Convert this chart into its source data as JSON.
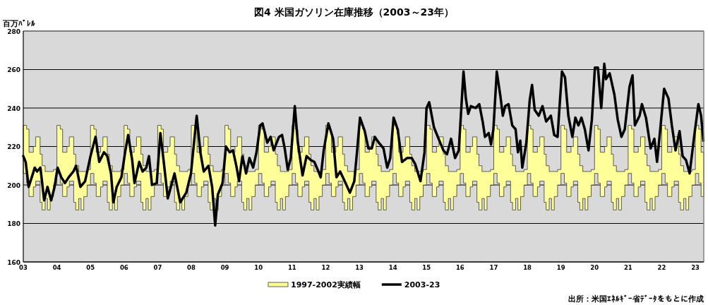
{
  "chart_data": {
    "type": "line",
    "title": "図4 米国ガソリン在庫推移（2003～23年）",
    "ylabel": "百万ﾊﾞﾚﾙ",
    "annotations": [
      "出所：米国ｴﾈﾙｷﾞｰ省ﾃﾞｰﾀをもとに作成"
    ],
    "xlim": [
      2003,
      2023.25
    ],
    "xticks": [
      {
        "value": 2003,
        "label": "03"
      },
      {
        "value": 2004,
        "label": "04"
      },
      {
        "value": 2005,
        "label": "05"
      },
      {
        "value": 2006,
        "label": "06"
      },
      {
        "value": 2007,
        "label": "07"
      },
      {
        "value": 2008,
        "label": "08"
      },
      {
        "value": 2009,
        "label": "09"
      },
      {
        "value": 2010,
        "label": "10"
      },
      {
        "value": 2011,
        "label": "11"
      },
      {
        "value": 2012,
        "label": "12"
      },
      {
        "value": 2013,
        "label": "13"
      },
      {
        "value": 2014,
        "label": "14"
      },
      {
        "value": 2015,
        "label": "15"
      },
      {
        "value": 2016,
        "label": "16"
      },
      {
        "value": 2017,
        "label": "17"
      },
      {
        "value": 2018,
        "label": "18"
      },
      {
        "value": 2019,
        "label": "19"
      },
      {
        "value": 2020,
        "label": "20"
      },
      {
        "value": 2021,
        "label": "21"
      },
      {
        "value": 2022,
        "label": "22"
      },
      {
        "value": 2023,
        "label": "23"
      }
    ],
    "ylim": [
      160,
      280
    ],
    "yticks": [
      160,
      180,
      200,
      220,
      240,
      260,
      280
    ],
    "grid": "y",
    "legend": "bottom",
    "series": [
      {
        "name": "1997-2002実績幅",
        "type": "area",
        "color": "#ffff99",
        "x": [
          2003,
          2003.1,
          2003.17,
          2003.3,
          2003.37,
          2003.5,
          2003.56,
          2003.65,
          2003.72,
          2003.8,
          2003.9,
          2004,
          2004.1,
          2004.17,
          2004.3,
          2004.37,
          2004.5,
          2004.56,
          2004.65,
          2004.72,
          2004.8,
          2004.9,
          2005,
          2005.1,
          2005.17,
          2005.3,
          2005.37,
          2005.5,
          2005.56,
          2005.65,
          2005.72,
          2005.8,
          2005.9,
          2006,
          2006.1,
          2006.17,
          2006.3,
          2006.37,
          2006.5,
          2006.56,
          2006.65,
          2006.72,
          2006.8,
          2006.9,
          2007,
          2007.1,
          2007.17,
          2007.3,
          2007.37,
          2007.5,
          2007.56,
          2007.65,
          2007.72,
          2007.8,
          2007.9,
          2008,
          2008.1,
          2008.17,
          2008.3,
          2008.37,
          2008.5,
          2008.56,
          2008.65,
          2008.72,
          2008.8,
          2008.9,
          2009,
          2009.1,
          2009.17,
          2009.3,
          2009.37,
          2009.5,
          2009.56,
          2009.65,
          2009.72,
          2009.8,
          2009.9,
          2010,
          2010.1,
          2010.17,
          2010.3,
          2010.37,
          2010.5,
          2010.56,
          2010.65,
          2010.72,
          2010.8,
          2010.9,
          2011,
          2011.1,
          2011.17,
          2011.3,
          2011.37,
          2011.5,
          2011.56,
          2011.65,
          2011.72,
          2011.8,
          2011.9,
          2012,
          2012.1,
          2012.17,
          2012.3,
          2012.37,
          2012.5,
          2012.56,
          2012.65,
          2012.72,
          2012.8,
          2012.9,
          2013,
          2013.1,
          2013.17,
          2013.3,
          2013.37,
          2013.5,
          2013.56,
          2013.65,
          2013.72,
          2013.8,
          2013.9,
          2014,
          2014.1,
          2014.17,
          2014.3,
          2014.37,
          2014.5,
          2014.56,
          2014.65,
          2014.72,
          2014.8,
          2014.9,
          2015,
          2015.1,
          2015.17,
          2015.3,
          2015.37,
          2015.5,
          2015.56,
          2015.65,
          2015.72,
          2015.8,
          2015.9,
          2016,
          2016.1,
          2016.17,
          2016.3,
          2016.37,
          2016.5,
          2016.56,
          2016.65,
          2016.72,
          2016.8,
          2016.9,
          2017,
          2017.1,
          2017.17,
          2017.3,
          2017.37,
          2017.5,
          2017.56,
          2017.65,
          2017.72,
          2017.8,
          2017.9,
          2018,
          2018.1,
          2018.17,
          2018.3,
          2018.37,
          2018.5,
          2018.56,
          2018.65,
          2018.72,
          2018.8,
          2018.9,
          2019,
          2019.1,
          2019.17,
          2019.3,
          2019.37,
          2019.5,
          2019.56,
          2019.65,
          2019.72,
          2019.8,
          2019.9,
          2020,
          2020.1,
          2020.17,
          2020.3,
          2020.37,
          2020.5,
          2020.56,
          2020.65,
          2020.72,
          2020.8,
          2020.9,
          2021,
          2021.1,
          2021.17,
          2021.3,
          2021.37,
          2021.5,
          2021.56,
          2021.65,
          2021.72,
          2021.8,
          2021.9,
          2022,
          2022.1,
          2022.17,
          2022.3,
          2022.37,
          2022.5,
          2022.56,
          2022.65,
          2022.72,
          2022.8,
          2022.9,
          2023,
          2023.1,
          2023.17
        ],
        "values": [
          null,
          null,
          null,
          null,
          null,
          null,
          null,
          null,
          null,
          null,
          null,
          null,
          null,
          null,
          null,
          null,
          null,
          null,
          null,
          null,
          null,
          null,
          null,
          null,
          null,
          null,
          null,
          null,
          null,
          null,
          null,
          null,
          null,
          null,
          null,
          null,
          null,
          null,
          null,
          null,
          null,
          null,
          null,
          null,
          null,
          null,
          null,
          null,
          null,
          null,
          null,
          null,
          null,
          null,
          null,
          null,
          null,
          null,
          null,
          null,
          null,
          null,
          null,
          null,
          null,
          null,
          null,
          null,
          null,
          null,
          null,
          null,
          null,
          null,
          null,
          null,
          null,
          null,
          null,
          null,
          null,
          null,
          null,
          null,
          null,
          null,
          null,
          null,
          null,
          null,
          null,
          null,
          null,
          null,
          null,
          null,
          null,
          null,
          null,
          null,
          null,
          null,
          null,
          null,
          null,
          null,
          null,
          null,
          null,
          null,
          null,
          null,
          null,
          null,
          null,
          null,
          null,
          null,
          null,
          null,
          null,
          null,
          null,
          null,
          null,
          null,
          null,
          null,
          null,
          null,
          null,
          null,
          null,
          null,
          null,
          null,
          null,
          null,
          null,
          null,
          null,
          null,
          null,
          null,
          null,
          null,
          null,
          null,
          null,
          null,
          null,
          null,
          null,
          null,
          null,
          null,
          null,
          null,
          null,
          null,
          null,
          null,
          null,
          null,
          null,
          null,
          null,
          null,
          null,
          null,
          null,
          null,
          null,
          null,
          null,
          null,
          null,
          null,
          null,
          null,
          null,
          null,
          null,
          null,
          null,
          null,
          null,
          null,
          null,
          null,
          null,
          null,
          null,
          null,
          null,
          null,
          null,
          null,
          null,
          null,
          null,
          null,
          null,
          null,
          null,
          null,
          null,
          null,
          null,
          null,
          null,
          null,
          null,
          null,
          null,
          null,
          null,
          null,
          null,
          null,
          null,
          null,
          null
        ],
        "upper": [
          231,
          229,
          217,
          220,
          225,
          216,
          210,
          207,
          207,
          207,
          208,
          231,
          229,
          217,
          220,
          225,
          216,
          210,
          207,
          207,
          207,
          208,
          231,
          229,
          217,
          220,
          225,
          216,
          210,
          207,
          207,
          207,
          208,
          231,
          229,
          217,
          220,
          225,
          216,
          210,
          207,
          207,
          207,
          208,
          231,
          229,
          217,
          220,
          225,
          216,
          210,
          207,
          207,
          207,
          208,
          231,
          229,
          217,
          220,
          225,
          216,
          210,
          207,
          207,
          207,
          208,
          231,
          229,
          217,
          220,
          225,
          216,
          210,
          207,
          207,
          207,
          208,
          231,
          229,
          217,
          220,
          225,
          216,
          210,
          207,
          207,
          207,
          208,
          231,
          229,
          217,
          220,
          225,
          216,
          210,
          207,
          207,
          207,
          208,
          231,
          229,
          217,
          220,
          225,
          216,
          210,
          207,
          207,
          207,
          208,
          231,
          229,
          217,
          220,
          225,
          216,
          210,
          207,
          207,
          207,
          208,
          231,
          229,
          217,
          220,
          225,
          216,
          210,
          207,
          207,
          207,
          208,
          231,
          229,
          217,
          220,
          225,
          216,
          210,
          207,
          207,
          207,
          208,
          231,
          229,
          217,
          220,
          225,
          216,
          210,
          207,
          207,
          207,
          208,
          231,
          229,
          217,
          220,
          225,
          216,
          210,
          207,
          207,
          207,
          208,
          231,
          229,
          217,
          220,
          225,
          216,
          210,
          207,
          207,
          207,
          208,
          231,
          229,
          217,
          220,
          225,
          216,
          210,
          207,
          207,
          207,
          208,
          231,
          229,
          217,
          220,
          225,
          216,
          210,
          207,
          207,
          207,
          208,
          231,
          229,
          217,
          220,
          225,
          216,
          210,
          207,
          207,
          207,
          208,
          231,
          229,
          217,
          220,
          225,
          216,
          210,
          207,
          207,
          207,
          208,
          231,
          229,
          217
        ],
        "lower": [
          206,
          201,
          194,
          199,
          202,
          191,
          187,
          193,
          187,
          194,
          200,
          206,
          201,
          194,
          199,
          202,
          191,
          187,
          193,
          187,
          194,
          200,
          206,
          201,
          194,
          199,
          202,
          191,
          187,
          193,
          187,
          194,
          200,
          206,
          201,
          194,
          199,
          202,
          191,
          187,
          193,
          187,
          194,
          200,
          206,
          201,
          194,
          199,
          202,
          191,
          187,
          193,
          187,
          194,
          200,
          206,
          201,
          194,
          199,
          202,
          191,
          187,
          193,
          187,
          194,
          200,
          206,
          201,
          194,
          199,
          202,
          191,
          187,
          193,
          187,
          194,
          200,
          206,
          201,
          194,
          199,
          202,
          191,
          187,
          193,
          187,
          194,
          200,
          206,
          201,
          194,
          199,
          202,
          191,
          187,
          193,
          187,
          194,
          200,
          206,
          201,
          194,
          199,
          202,
          191,
          187,
          193,
          187,
          194,
          200,
          206,
          201,
          194,
          199,
          202,
          191,
          187,
          193,
          187,
          194,
          200,
          206,
          201,
          194,
          199,
          202,
          191,
          187,
          193,
          187,
          194,
          200,
          206,
          201,
          194,
          199,
          202,
          191,
          187,
          193,
          187,
          194,
          200,
          206,
          201,
          194,
          199,
          202,
          191,
          187,
          193,
          187,
          194,
          200,
          206,
          201,
          194,
          199,
          202,
          191,
          187,
          193,
          187,
          194,
          200,
          206,
          201,
          194,
          199,
          202,
          191,
          187,
          193,
          187,
          194,
          200,
          206,
          201,
          194,
          199,
          202,
          191,
          187,
          193,
          187,
          194,
          200,
          206,
          201,
          194,
          199,
          202,
          191,
          187,
          193,
          187,
          194,
          200,
          206,
          201,
          194,
          199,
          202,
          191,
          187,
          193,
          187,
          194,
          200,
          206,
          201,
          194,
          199,
          202,
          191,
          187,
          193,
          187,
          194,
          200,
          206,
          201,
          194
        ]
      },
      {
        "name": "2003-23",
        "type": "line",
        "color": "#000000",
        "x": [
          2003.0,
          2003.07,
          2003.16,
          2003.27,
          2003.34,
          2003.41,
          2003.51,
          2003.62,
          2003.72,
          2003.83,
          2003.93,
          2004.02,
          2004.13,
          2004.24,
          2004.35,
          2004.49,
          2004.57,
          2004.7,
          2004.84,
          2005.0,
          2005.15,
          2005.26,
          2005.4,
          2005.5,
          2005.61,
          2005.68,
          2005.78,
          2005.92,
          2006.03,
          2006.12,
          2006.24,
          2006.31,
          2006.45,
          2006.55,
          2006.66,
          2006.74,
          2006.83,
          2006.97,
          2007.08,
          2007.18,
          2007.3,
          2007.5,
          2007.67,
          2007.85,
          2007.99,
          2008.16,
          2008.27,
          2008.37,
          2008.51,
          2008.62,
          2008.71,
          2008.79,
          2008.93,
          2009.03,
          2009.14,
          2009.24,
          2009.35,
          2009.42,
          2009.52,
          2009.63,
          2009.73,
          2009.84,
          2009.94,
          2010.05,
          2010.12,
          2010.26,
          2010.36,
          2010.45,
          2010.61,
          2010.7,
          2010.78,
          2010.87,
          2010.96,
          2011.08,
          2011.17,
          2011.31,
          2011.43,
          2011.55,
          2011.66,
          2011.76,
          2011.85,
          2011.94,
          2012.08,
          2012.22,
          2012.32,
          2012.43,
          2012.59,
          2012.72,
          2012.85,
          2012.93,
          2013.02,
          2013.16,
          2013.27,
          2013.37,
          2013.46,
          2013.58,
          2013.72,
          2013.83,
          2013.92,
          2014.02,
          2014.14,
          2014.27,
          2014.42,
          2014.56,
          2014.66,
          2014.82,
          2014.94,
          2015.0,
          2015.08,
          2015.22,
          2015.36,
          2015.5,
          2015.61,
          2015.73,
          2015.85,
          2015.96,
          2016.1,
          2016.17,
          2016.24,
          2016.32,
          2016.46,
          2016.57,
          2016.67,
          2016.74,
          2016.85,
          2016.92,
          2016.99,
          2017.09,
          2017.2,
          2017.27,
          2017.34,
          2017.44,
          2017.55,
          2017.65,
          2017.72,
          2017.79,
          2017.85,
          2017.97,
          2018.07,
          2018.14,
          2018.22,
          2018.34,
          2018.45,
          2018.56,
          2018.7,
          2018.8,
          2018.9,
          2018.94,
          2019.03,
          2019.12,
          2019.22,
          2019.34,
          2019.43,
          2019.52,
          2019.61,
          2019.71,
          2019.82,
          2019.92,
          2020.01,
          2020.1,
          2020.2,
          2020.29,
          2020.34,
          2020.45,
          2020.59,
          2020.69,
          2020.8,
          2020.9,
          2021.04,
          2021.13,
          2021.2,
          2021.34,
          2021.41,
          2021.53,
          2021.67,
          2021.78,
          2021.86,
          2021.95,
          2022.07,
          2022.2,
          2022.3,
          2022.41,
          2022.53,
          2022.62,
          2022.72,
          2022.83,
          2022.97,
          2023.09,
          2023.17,
          2023.24
        ],
        "values": [
          215,
          212,
          199,
          205,
          209,
          207,
          209,
          192,
          199,
          192,
          199,
          209,
          204,
          201,
          204,
          207,
          210,
          199,
          202,
          215,
          225,
          212,
          217,
          215,
          206,
          191,
          199,
          204,
          217,
          226,
          213,
          201,
          212,
          207,
          209,
          215,
          200,
          201,
          227,
          212,
          193,
          206,
          191,
          196,
          206,
          236,
          217,
          207,
          210,
          199,
          179,
          195,
          201,
          220,
          217,
          218,
          209,
          202,
          215,
          206,
          214,
          209,
          217,
          231,
          232,
          222,
          225,
          218,
          225,
          226,
          219,
          208,
          214,
          241,
          222,
          205,
          215,
          213,
          212,
          208,
          204,
          218,
          232,
          224,
          204,
          207,
          201,
          196,
          202,
          217,
          235,
          228,
          219,
          219,
          225,
          222,
          219,
          209,
          214,
          235,
          229,
          212,
          214,
          214,
          211,
          202,
          217,
          240,
          243,
          230,
          224,
          218,
          216,
          224,
          214,
          218,
          259,
          245,
          237,
          241,
          240,
          242,
          233,
          225,
          227,
          221,
          229,
          259,
          246,
          236,
          241,
          242,
          231,
          229,
          217,
          223,
          209,
          222,
          244,
          252,
          239,
          236,
          241,
          233,
          236,
          226,
          225,
          236,
          259,
          256,
          236,
          225,
          235,
          231,
          235,
          229,
          218,
          234,
          261,
          261,
          240,
          263,
          255,
          258,
          247,
          234,
          225,
          229,
          251,
          257,
          231,
          236,
          242,
          235,
          219,
          224,
          212,
          228,
          250,
          245,
          231,
          218,
          228,
          215,
          213,
          206,
          226,
          242,
          236,
          223
        ]
      }
    ]
  }
}
